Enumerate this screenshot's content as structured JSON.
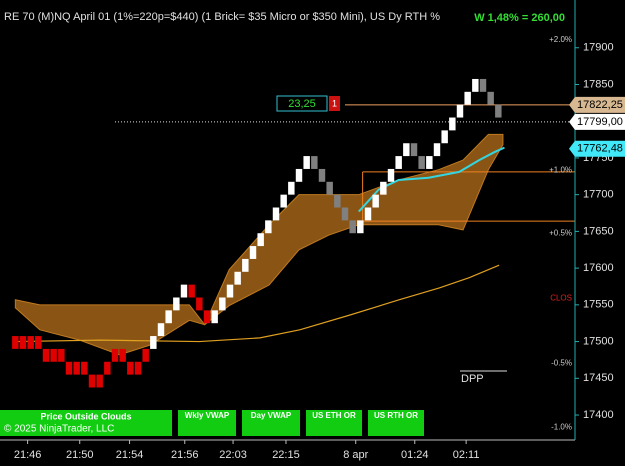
{
  "chart_data": {
    "type": "renko",
    "title": "RE 70 (M)NQ April 01 (1%=220p=$440) (1 Brick= $35 Micro or $350 Mini), US Dy RTH %",
    "stat": "W 1,48% = 260,00",
    "xlim": [
      -2,
      73
    ],
    "ylim": [
      17366,
      17965
    ],
    "xticks": [
      {
        "value": 1.6,
        "label": "21:46"
      },
      {
        "value": 8.4,
        "label": "21:50"
      },
      {
        "value": 14.9,
        "label": "21:54"
      },
      {
        "value": 22.1,
        "label": "21:56"
      },
      {
        "value": 28.4,
        "label": "22:03"
      },
      {
        "value": 35.3,
        "label": "22:15"
      },
      {
        "value": 44.4,
        "label": "8 apr"
      },
      {
        "value": 52.1,
        "label": "01:24"
      },
      {
        "value": 58.8,
        "label": "02:11"
      }
    ],
    "yticks": [
      17400,
      17450,
      17500,
      17550,
      17600,
      17650,
      17700,
      17750,
      17800,
      17850,
      17900
    ],
    "bricks": {
      "open": [
        17490,
        17507.5,
        17490,
        17507.5,
        17490,
        17472.5,
        17490,
        17472.5,
        17455,
        17472.5,
        17455,
        17437.5,
        17455,
        17472.5,
        17490,
        17472.5,
        17455,
        17472.5,
        17490,
        17507.5,
        17525,
        17542.5,
        17560,
        17577.5,
        17560,
        17542.5,
        17525,
        17542.5,
        17560,
        17577.5,
        17595,
        17612.5,
        17630,
        17647.5,
        17665,
        17682.5,
        17700,
        17717.5,
        17735,
        17752.5,
        17735,
        17717.5,
        17700,
        17682.5,
        17665,
        17647.5,
        17665,
        17682.5,
        17700,
        17717.5,
        17735,
        17752.5,
        17770,
        17752.5,
        17735,
        17752.5,
        17770,
        17787.5,
        17805,
        17822.5,
        17840,
        17857.5,
        17840,
        17822.5
      ],
      "close": [
        17507.5,
        17490,
        17507.5,
        17490,
        17472.5,
        17490,
        17472.5,
        17455,
        17472.5,
        17455,
        17437.5,
        17455,
        17472.5,
        17490,
        17472.5,
        17455,
        17472.5,
        17490,
        17507.5,
        17525,
        17542.5,
        17560,
        17577.5,
        17560,
        17542.5,
        17525,
        17542.5,
        17560,
        17577.5,
        17595,
        17612.5,
        17630,
        17647.5,
        17665,
        17682.5,
        17700,
        17717.5,
        17735,
        17752.5,
        17735,
        17717.5,
        17700,
        17682.5,
        17665,
        17647.5,
        17665,
        17682.5,
        17700,
        17717.5,
        17735,
        17752.5,
        17770,
        17752.5,
        17735,
        17752.5,
        17770,
        17787.5,
        17805,
        17822.5,
        17840,
        17857.5,
        17840,
        17822.5,
        17805
      ],
      "colors": [
        "#e00000",
        "#e00000",
        "#e00000",
        "#e00000",
        "#e00000",
        "#e00000",
        "#e00000",
        "#e00000",
        "#e00000",
        "#e00000",
        "#e00000",
        "#e00000",
        "#e00000",
        "#e00000",
        "#e00000",
        "#e00000",
        "#e00000",
        "#e00000",
        "#ffffff",
        "#ffffff",
        "#ffffff",
        "#ffffff",
        "#ffffff",
        "#e00000",
        "#e00000",
        "#e00000",
        "#ffffff",
        "#ffffff",
        "#ffffff",
        "#ffffff",
        "#ffffff",
        "#ffffff",
        "#ffffff",
        "#ffffff",
        "#ffffff",
        "#ffffff",
        "#ffffff",
        "#ffffff",
        "#ffffff",
        "#808080",
        "#808080",
        "#808080",
        "#808080",
        "#808080",
        "#808080",
        "#ffffff",
        "#ffffff",
        "#ffffff",
        "#ffffff",
        "#ffffff",
        "#ffffff",
        "#ffffff",
        "#808080",
        "#808080",
        "#ffffff",
        "#ffffff",
        "#ffffff",
        "#ffffff",
        "#ffffff",
        "#ffffff",
        "#ffffff",
        "#808080",
        "#808080",
        "#808080"
      ]
    },
    "cloud": {
      "color": "#8a5514",
      "edge": "#c07a20",
      "x": [
        0,
        3.2,
        8.4,
        13.6,
        17.5,
        22.7,
        24.7,
        27.9,
        33.1,
        37,
        40.9,
        44.8,
        50,
        55.2,
        58.4,
        61.7,
        63.6
      ],
      "upper": [
        17557,
        17550,
        17550,
        17550,
        17550,
        17550,
        17523,
        17598,
        17659,
        17700,
        17700,
        17700,
        17720,
        17734,
        17747,
        17782,
        17782
      ],
      "lower": [
        17546,
        17516,
        17502,
        17482,
        17495,
        17529,
        17523,
        17549,
        17577,
        17625,
        17645,
        17659,
        17659,
        17659,
        17652,
        17734,
        17768
      ]
    },
    "lines": [
      {
        "color": "#33d6e0",
        "width": 2,
        "x": [
          44.8,
          47.4,
          50,
          53.9,
          57.9,
          60.5,
          62.5,
          63.8
        ],
        "values": [
          17677,
          17707,
          17720,
          17723,
          17731,
          17747,
          17758,
          17764
        ]
      },
      {
        "color": "#e0a020",
        "width": 1.2,
        "x": [
          0,
          11,
          24,
          31.9,
          37.1,
          43.6,
          50.1,
          55.3,
          59.2,
          63.1
        ],
        "values": [
          17500,
          17502,
          17500,
          17505,
          17516,
          17536,
          17557,
          17573,
          17587,
          17604
        ]
      }
    ],
    "levels": [
      {
        "value": 17822.25,
        "start": 43,
        "color": "#f0a060",
        "dash": false
      },
      {
        "value": 17799,
        "start": 13,
        "color": "#dddddd",
        "dash": true
      },
      {
        "value": 17731,
        "start": 45.3,
        "color": "#f08020",
        "dash": false
      },
      {
        "value": 17664,
        "start": 45.3,
        "color": "#f08020",
        "dash": false
      }
    ],
    "zone": {
      "x": 45.3,
      "top": 17731,
      "bottom": 17664,
      "color": "#f08020"
    },
    "price_tags": [
      {
        "value": 17822.25,
        "label": "17822,25",
        "color": "#d8b890"
      },
      {
        "value": 17799,
        "label": "17799,00",
        "color": "#ffffff"
      },
      {
        "value": 17762.48,
        "label": "17762,48",
        "color": "#40e8f8"
      }
    ],
    "pct_levels": [
      {
        "value": 17911,
        "label": "+2.0%",
        "color": "#cccccc"
      },
      {
        "value": 17733,
        "label": "+1.0%",
        "color": "#cccccc"
      },
      {
        "value": 17647,
        "label": "+0.5%",
        "color": "#cccccc"
      },
      {
        "value": 17559,
        "label": "CLOS",
        "color": "#e02020"
      },
      {
        "value": 17470,
        "label": "-0.5%",
        "color": "#cccccc"
      },
      {
        "value": 17383,
        "label": "-1.0%",
        "color": "#cccccc"
      }
    ],
    "order": {
      "label": "23,25",
      "tag": "1"
    },
    "dpp": "DPP",
    "buttons": [
      "Price Outside Clouds",
      "Wkly VWAP",
      "Day VWAP",
      "US ETH OR",
      "US RTH OR"
    ],
    "copyright": "© 2025 NinjaTrader, LLC"
  }
}
